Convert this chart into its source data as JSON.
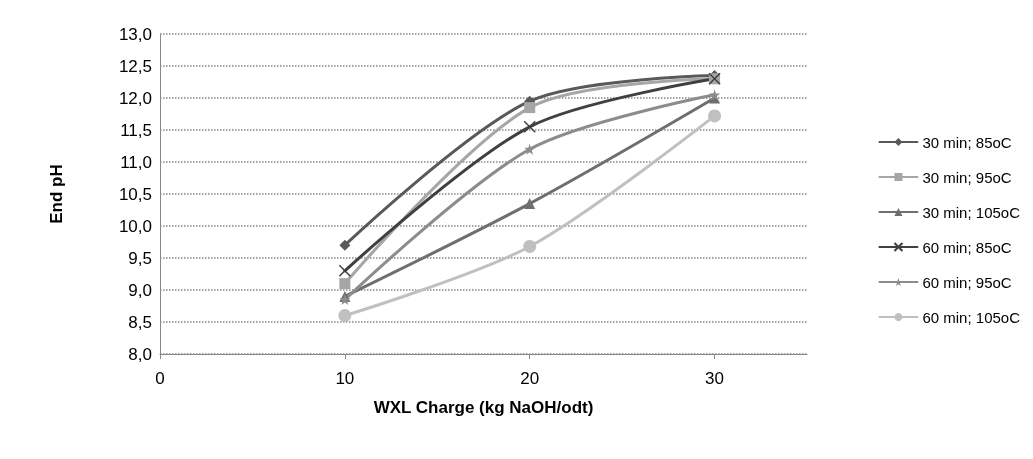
{
  "chart_data": {
    "type": "line",
    "xlabel": "WXL Charge (kg NaOH/odt)",
    "ylabel": "End pH",
    "x": [
      10,
      20,
      30
    ],
    "xlim": [
      0,
      35
    ],
    "xticks": [
      0,
      10,
      20,
      30
    ],
    "ylim": [
      8,
      13
    ],
    "yticks": [
      {
        "value": 8,
        "label": "8,0"
      },
      {
        "value": 8.5,
        "label": "8,5"
      },
      {
        "value": 9,
        "label": "9,0"
      },
      {
        "value": 9.5,
        "label": "9,5"
      },
      {
        "value": 10,
        "label": "10,0"
      },
      {
        "value": 10.5,
        "label": "10,5"
      },
      {
        "value": 11,
        "label": "11,0"
      },
      {
        "value": 11.5,
        "label": "11,5"
      },
      {
        "value": 12,
        "label": "12,0"
      },
      {
        "value": 12.5,
        "label": "12,5"
      },
      {
        "value": 13,
        "label": "13,0"
      }
    ],
    "grid": "y",
    "legend": "right",
    "series": [
      {
        "name": "30 min; 85oC",
        "color": "#595959",
        "marker": "diamond",
        "values": [
          9.7,
          11.95,
          12.35
        ]
      },
      {
        "name": "30 min; 95oC",
        "color": "#a6a6a6",
        "marker": "square",
        "values": [
          9.1,
          11.85,
          12.3
        ]
      },
      {
        "name": "30 min; 105oC",
        "color": "#6f6f6f",
        "marker": "triangle",
        "values": [
          8.9,
          10.35,
          12.0
        ]
      },
      {
        "name": "60 min; 85oC",
        "color": "#404040",
        "marker": "cross",
        "values": [
          9.3,
          11.55,
          12.3
        ]
      },
      {
        "name": "60 min; 95oC",
        "color": "#8c8c8c",
        "marker": "star",
        "values": [
          8.85,
          11.2,
          12.05
        ]
      },
      {
        "name": "60 min; 105oC",
        "color": "#c0c0c0",
        "marker": "circle",
        "values": [
          8.6,
          9.68,
          11.72
        ]
      }
    ]
  }
}
